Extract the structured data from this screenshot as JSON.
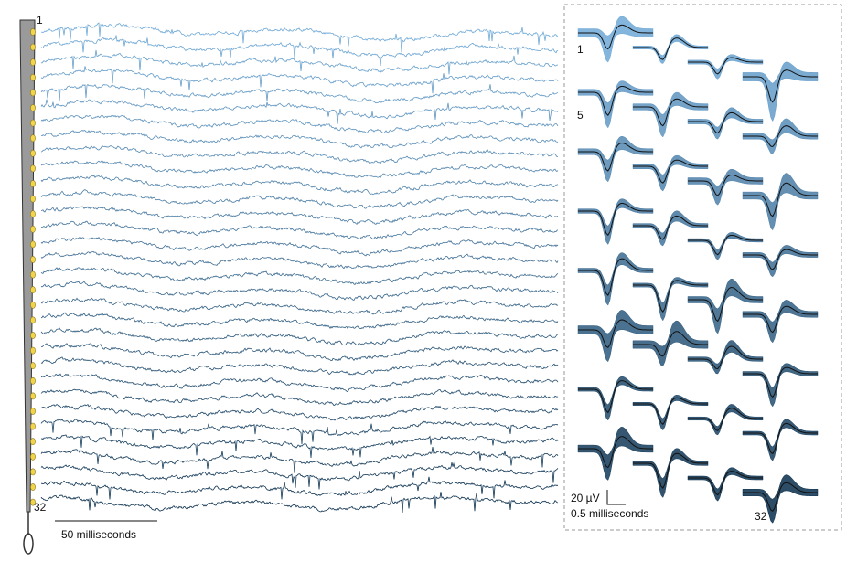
{
  "probe": {
    "top_label": "1",
    "bottom_label": "32"
  },
  "traces": {
    "scale_bar_label": "50 milliseconds"
  },
  "waveforms": {
    "labels": [
      "1",
      "5",
      "32"
    ],
    "scale_bar_voltage": "20 µV",
    "scale_bar_time": "0.5 milliseconds"
  }
}
